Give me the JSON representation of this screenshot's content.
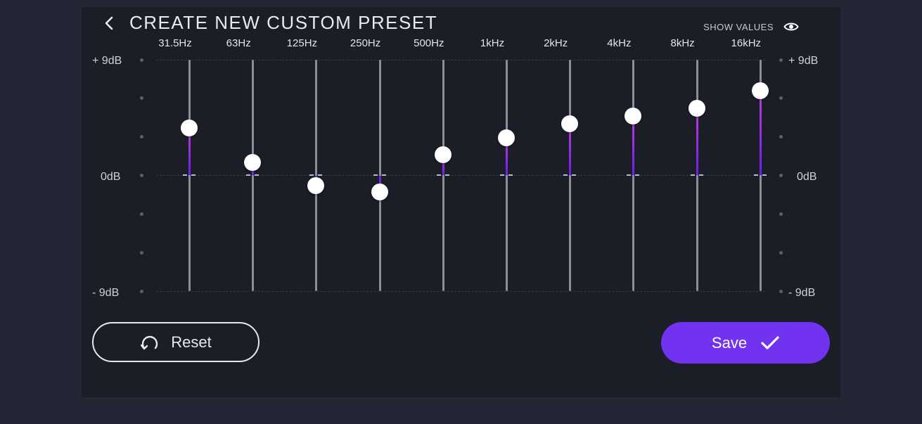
{
  "header": {
    "back_icon": "chevron-left-icon",
    "title": "CREATE NEW CUSTOM PRESET"
  },
  "show_values": {
    "label": "SHOW VALUES",
    "icon": "eye-icon"
  },
  "scale": {
    "max_label": "+ 9dB",
    "zero_label": "0dB",
    "min_label": "- 9dB",
    "max_db": 9,
    "min_db": -9
  },
  "bands": [
    {
      "label": "31.5Hz",
      "gain_db": 3.7
    },
    {
      "label": "63Hz",
      "gain_db": 1.0
    },
    {
      "label": "125Hz",
      "gain_db": -0.8
    },
    {
      "label": "250Hz",
      "gain_db": -1.3
    },
    {
      "label": "500Hz",
      "gain_db": 1.6
    },
    {
      "label": "1kHz",
      "gain_db": 2.9
    },
    {
      "label": "2kHz",
      "gain_db": 4.0
    },
    {
      "label": "4kHz",
      "gain_db": 4.6
    },
    {
      "label": "8kHz",
      "gain_db": 5.2
    },
    {
      "label": "16kHz",
      "gain_db": 6.6
    }
  ],
  "actions": {
    "reset_label": "Reset",
    "reset_icon": "reset-icon",
    "save_label": "Save",
    "save_icon": "checkmark-icon"
  },
  "colors": {
    "accent": "#7233f0",
    "fill_top": "#c23ecf",
    "fill_bottom": "#6a1ff0",
    "background": "#232634",
    "panel": "#1b1d27"
  }
}
